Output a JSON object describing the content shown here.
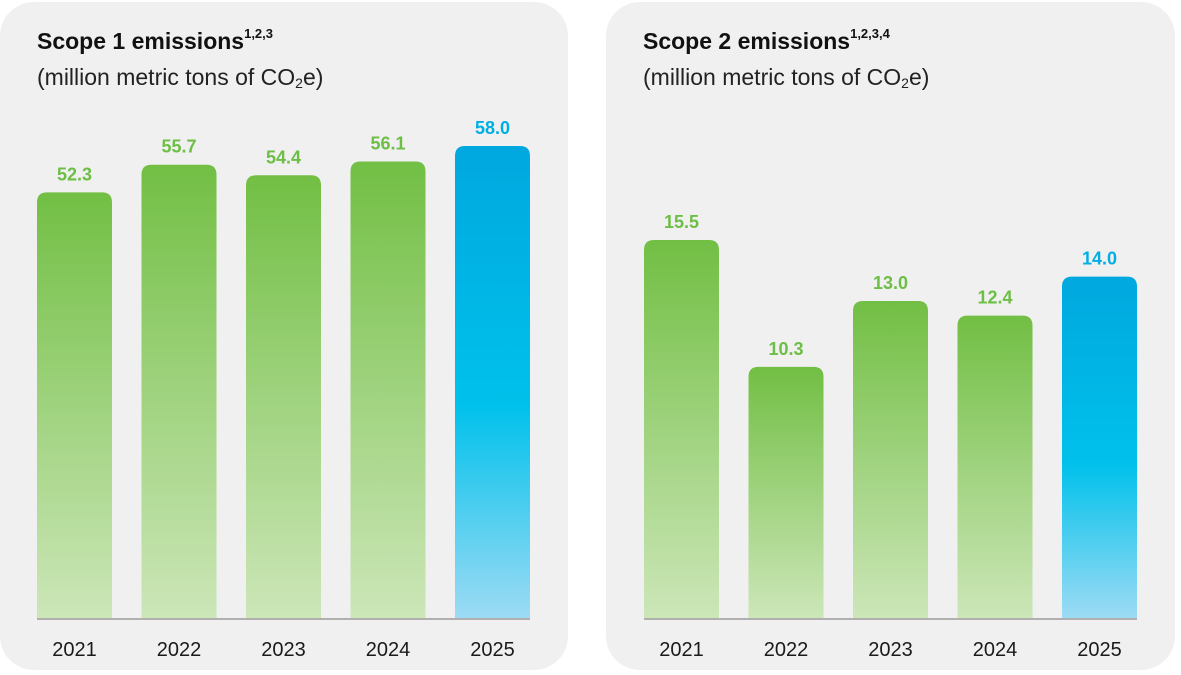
{
  "chart_data": [
    {
      "type": "bar",
      "title": "Scope 1 emissions",
      "title_superscript": "1,2,3",
      "subtitle_prefix": "(million metric tons of CO",
      "subtitle_sub": "2",
      "subtitle_suffix": "e)",
      "categories": [
        "2021",
        "2022",
        "2023",
        "2024",
        "2025"
      ],
      "values": [
        52.3,
        55.7,
        54.4,
        56.1,
        58.0
      ],
      "value_labels": [
        "52.3",
        "55.7",
        "54.4",
        "56.1",
        "58.0"
      ],
      "highlight_index": 4,
      "ylim": [
        0,
        58
      ],
      "grid": false
    },
    {
      "type": "bar",
      "title": "Scope 2 emissions",
      "title_superscript": "1,2,3,4",
      "subtitle_prefix": "(million metric tons of CO",
      "subtitle_sub": "2",
      "subtitle_suffix": "e)",
      "categories": [
        "2021",
        "2022",
        "2023",
        "2024",
        "2025"
      ],
      "values": [
        15.5,
        10.3,
        13.0,
        12.4,
        14.0
      ],
      "value_labels": [
        "15.5",
        "10.3",
        "13.0",
        "12.4",
        "14.0"
      ],
      "highlight_index": 4,
      "ylim": [
        0,
        15.5
      ],
      "grid": false
    }
  ],
  "colors": {
    "green_top": "#72bf44",
    "green_bottom": "#cce6b8",
    "green_label": "#6dbe45",
    "blue_top": "#00a8df",
    "blue_mid": "#00c1eb",
    "blue_bottom": "#9ddbf4",
    "blue_label": "#00aee6",
    "axis": "#9a9a9a",
    "panel": "#f0f0f0"
  }
}
